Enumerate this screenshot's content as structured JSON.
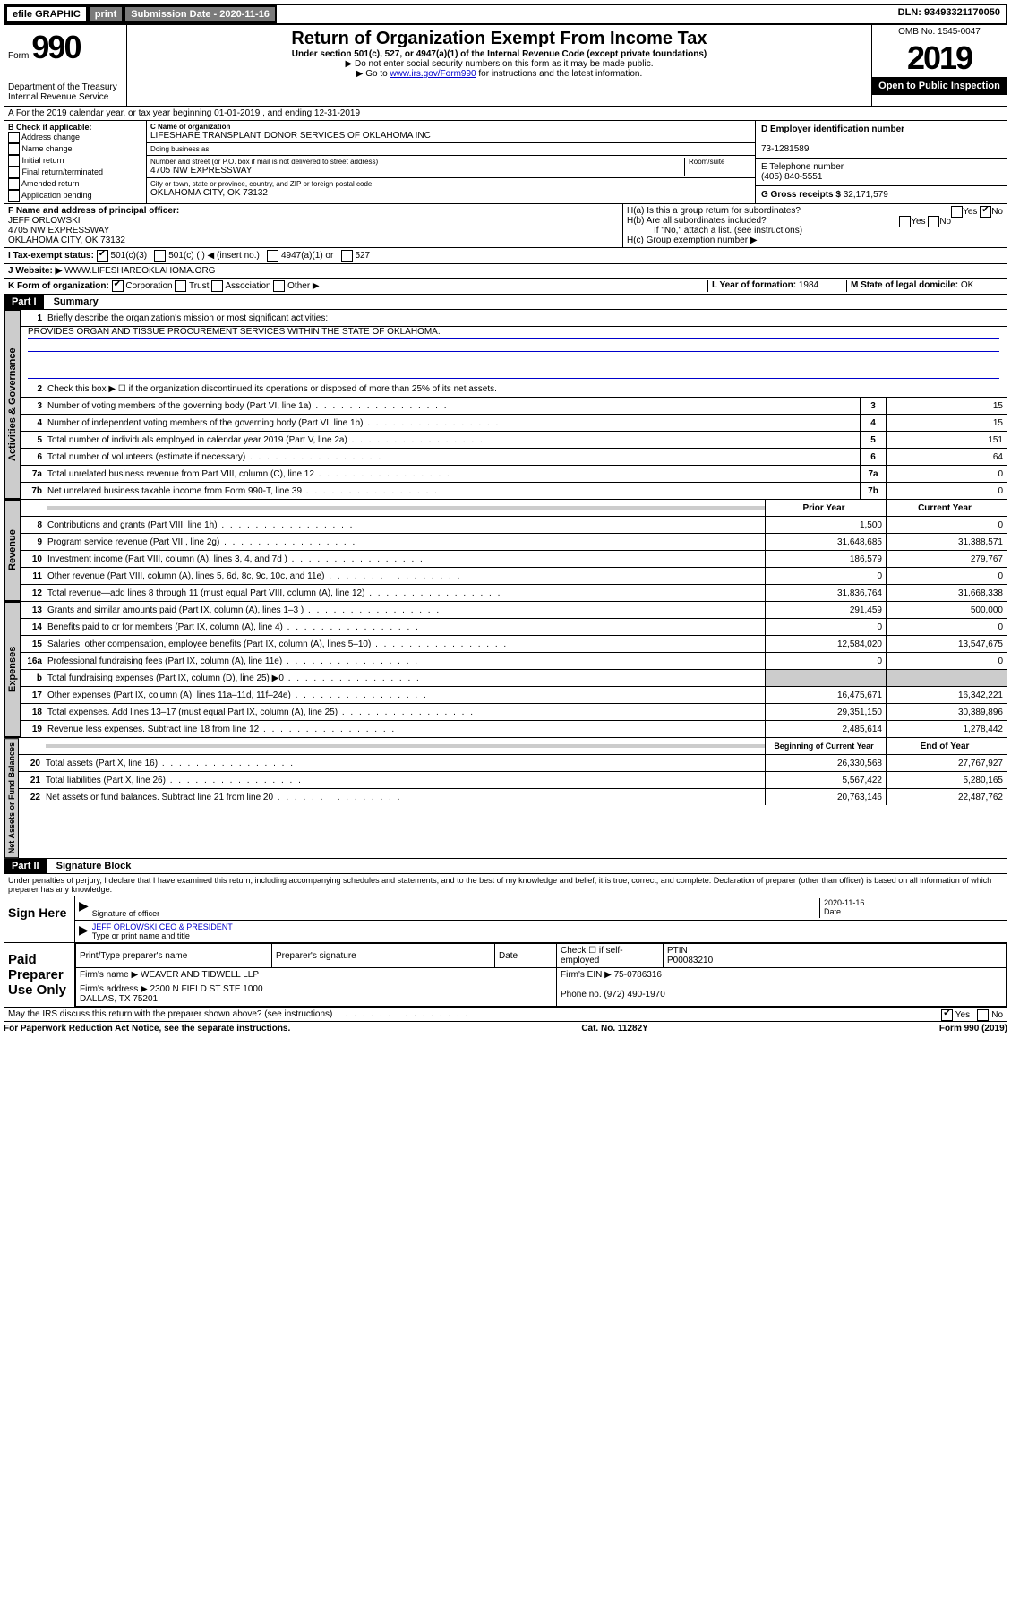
{
  "topbar": {
    "efile": "efile GRAPHIC",
    "print": "print",
    "sub_label": "Submission Date - 2020-11-16",
    "dln": "DLN: 93493321170050"
  },
  "header": {
    "form_word": "Form",
    "form_no": "990",
    "dept": "Department of the Treasury\nInternal Revenue Service",
    "title": "Return of Organization Exempt From Income Tax",
    "sub": "Under section 501(c), 527, or 4947(a)(1) of the Internal Revenue Code (except private foundations)",
    "instr1": "▶ Do not enter social security numbers on this form as it may be made public.",
    "instr2_pre": "▶ Go to ",
    "instr2_link": "www.irs.gov/Form990",
    "instr2_post": " for instructions and the latest information.",
    "omb": "OMB No. 1545-0047",
    "year": "2019",
    "open": "Open to Public Inspection"
  },
  "a": {
    "line": "A For the 2019 calendar year, or tax year beginning 01-01-2019   , and ending 12-31-2019"
  },
  "b": {
    "label": "B Check if applicable:",
    "opts": [
      "Address change",
      "Name change",
      "Initial return",
      "Final return/terminated",
      "Amended return",
      "Application pending"
    ]
  },
  "c": {
    "name_label": "C Name of organization",
    "name": "LIFESHARE TRANSPLANT DONOR SERVICES OF OKLAHOMA INC",
    "dba_label": "Doing business as",
    "addr_label": "Number and street (or P.O. box if mail is not delivered to street address)",
    "room": "Room/suite",
    "addr": "4705 NW EXPRESSWAY",
    "city_label": "City or town, state or province, country, and ZIP or foreign postal code",
    "city": "OKLAHOMA CITY, OK  73132"
  },
  "d": {
    "label": "D Employer identification number",
    "val": "73-1281589"
  },
  "e": {
    "label": "E Telephone number",
    "val": "(405) 840-5551"
  },
  "g": {
    "label": "G Gross receipts $",
    "val": "32,171,579"
  },
  "f": {
    "label": "F Name and address of principal officer:",
    "name": "JEFF ORLOWSKI",
    "addr": "4705 NW EXPRESSWAY\nOKLAHOMA CITY, OK  73132"
  },
  "h": {
    "a": "H(a)  Is this a group return for subordinates?",
    "b": "H(b)  Are all subordinates included?",
    "b_note": "If \"No,\" attach a list. (see instructions)",
    "c": "H(c)  Group exemption number ▶"
  },
  "i": {
    "label": "I Tax-exempt status:",
    "opts": [
      "501(c)(3)",
      "501(c) (  ) ◀ (insert no.)",
      "4947(a)(1) or",
      "527"
    ]
  },
  "j": {
    "label": "J Website: ▶",
    "val": "WWW.LIFESHAREOKLAHOMA.ORG"
  },
  "k": {
    "label": "K Form of organization:",
    "opts": [
      "Corporation",
      "Trust",
      "Association",
      "Other ▶"
    ]
  },
  "l": {
    "label": "L Year of formation:",
    "val": "1984"
  },
  "m": {
    "label": "M State of legal domicile:",
    "val": "OK"
  },
  "part1": {
    "tag": "Part I",
    "title": "Summary",
    "l1": "Briefly describe the organization's mission or most significant activities:",
    "mission": "PROVIDES ORGAN AND TISSUE PROCUREMENT SERVICES WITHIN THE STATE OF OKLAHOMA.",
    "l2": "Check this box ▶ ☐ if the organization discontinued its operations or disposed of more than 25% of its net assets.",
    "lines_top": [
      {
        "n": "3",
        "d": "Number of voting members of the governing body (Part VI, line 1a)",
        "v": "15"
      },
      {
        "n": "4",
        "d": "Number of independent voting members of the governing body (Part VI, line 1b)",
        "v": "15"
      },
      {
        "n": "5",
        "d": "Total number of individuals employed in calendar year 2019 (Part V, line 2a)",
        "v": "151"
      },
      {
        "n": "6",
        "d": "Total number of volunteers (estimate if necessary)",
        "v": "64"
      },
      {
        "n": "7a",
        "d": "Total unrelated business revenue from Part VIII, column (C), line 12",
        "v": "0"
      },
      {
        "n": "7b",
        "d": "Net unrelated business taxable income from Form 990-T, line 39",
        "v": "0"
      }
    ],
    "hdr_prior": "Prior Year",
    "hdr_curr": "Current Year",
    "hdr_beg": "Beginning of Current Year",
    "hdr_end": "End of Year",
    "revenue": [
      {
        "n": "8",
        "d": "Contributions and grants (Part VIII, line 1h)",
        "p": "1,500",
        "c": "0"
      },
      {
        "n": "9",
        "d": "Program service revenue (Part VIII, line 2g)",
        "p": "31,648,685",
        "c": "31,388,571"
      },
      {
        "n": "10",
        "d": "Investment income (Part VIII, column (A), lines 3, 4, and 7d )",
        "p": "186,579",
        "c": "279,767"
      },
      {
        "n": "11",
        "d": "Other revenue (Part VIII, column (A), lines 5, 6d, 8c, 9c, 10c, and 11e)",
        "p": "0",
        "c": "0"
      },
      {
        "n": "12",
        "d": "Total revenue—add lines 8 through 11 (must equal Part VIII, column (A), line 12)",
        "p": "31,836,764",
        "c": "31,668,338"
      }
    ],
    "expenses": [
      {
        "n": "13",
        "d": "Grants and similar amounts paid (Part IX, column (A), lines 1–3 )",
        "p": "291,459",
        "c": "500,000"
      },
      {
        "n": "14",
        "d": "Benefits paid to or for members (Part IX, column (A), line 4)",
        "p": "0",
        "c": "0"
      },
      {
        "n": "15",
        "d": "Salaries, other compensation, employee benefits (Part IX, column (A), lines 5–10)",
        "p": "12,584,020",
        "c": "13,547,675"
      },
      {
        "n": "16a",
        "d": "Professional fundraising fees (Part IX, column (A), line 11e)",
        "p": "0",
        "c": "0"
      },
      {
        "n": "b",
        "d": "Total fundraising expenses (Part IX, column (D), line 25) ▶0",
        "p": "",
        "c": "",
        "shade": true
      },
      {
        "n": "17",
        "d": "Other expenses (Part IX, column (A), lines 11a–11d, 11f–24e)",
        "p": "16,475,671",
        "c": "16,342,221"
      },
      {
        "n": "18",
        "d": "Total expenses. Add lines 13–17 (must equal Part IX, column (A), line 25)",
        "p": "29,351,150",
        "c": "30,389,896"
      },
      {
        "n": "19",
        "d": "Revenue less expenses. Subtract line 18 from line 12",
        "p": "2,485,614",
        "c": "1,278,442"
      }
    ],
    "net": [
      {
        "n": "20",
        "d": "Total assets (Part X, line 16)",
        "p": "26,330,568",
        "c": "27,767,927"
      },
      {
        "n": "21",
        "d": "Total liabilities (Part X, line 26)",
        "p": "5,567,422",
        "c": "5,280,165"
      },
      {
        "n": "22",
        "d": "Net assets or fund balances. Subtract line 21 from line 20",
        "p": "20,763,146",
        "c": "22,487,762"
      }
    ],
    "tabs": {
      "gov": "Activities & Governance",
      "rev": "Revenue",
      "exp": "Expenses",
      "net": "Net Assets or Fund Balances"
    }
  },
  "part2": {
    "tag": "Part II",
    "title": "Signature Block",
    "decl": "Under penalties of perjury, I declare that I have examined this return, including accompanying schedules and statements, and to the best of my knowledge and belief, it is true, correct, and complete. Declaration of preparer (other than officer) is based on all information of which preparer has any knowledge.",
    "sign_here": "Sign Here",
    "sig_officer": "Signature of officer",
    "date": "2020-11-16",
    "date_lbl": "Date",
    "officer": "JEFF ORLOWSKI CEO & PRESIDENT",
    "officer_lbl": "Type or print name and title",
    "paid": "Paid Preparer Use Only",
    "pt_name_lbl": "Print/Type preparer's name",
    "pt_sig_lbl": "Preparer's signature",
    "pt_date_lbl": "Date",
    "pt_self": "Check ☐ if self-employed",
    "ptin_lbl": "PTIN",
    "ptin": "P00083210",
    "firm_name_lbl": "Firm's name   ▶",
    "firm_name": "WEAVER AND TIDWELL LLP",
    "firm_ein_lbl": "Firm's EIN ▶",
    "firm_ein": "75-0786316",
    "firm_addr_lbl": "Firm's address ▶",
    "firm_addr": "2300 N FIELD ST STE 1000\nDALLAS, TX  75201",
    "phone_lbl": "Phone no.",
    "phone": "(972) 490-1970",
    "irs_q": "May the IRS discuss this return with the preparer shown above? (see instructions)"
  },
  "footer": {
    "left": "For Paperwork Reduction Act Notice, see the separate instructions.",
    "mid": "Cat. No. 11282Y",
    "right": "Form 990 (2019)"
  }
}
